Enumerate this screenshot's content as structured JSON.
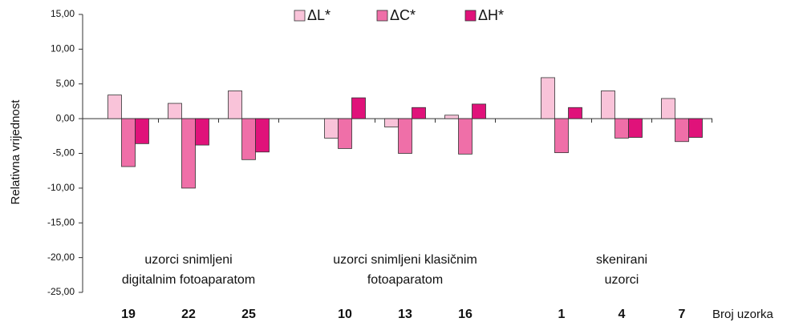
{
  "chart_data": {
    "type": "bar",
    "y_label": "Relativna vrijednost",
    "x_label": "Broj uzorka",
    "categories": [
      "19",
      "22",
      "25",
      "10",
      "13",
      "16",
      "1",
      "4",
      "7"
    ],
    "groups": [
      [
        "uzorci snimljeni",
        "digitalnim fotoaparatom"
      ],
      [
        "uzorci snimljeni klasičnim",
        "fotoaparatom"
      ],
      [
        "skenirani",
        "uzorci"
      ]
    ],
    "series": [
      {
        "name": "ΔL*",
        "color": "#f9c3d9",
        "values": [
          3.4,
          2.2,
          4.0,
          -2.8,
          -1.2,
          0.5,
          5.9,
          4.0,
          2.9
        ]
      },
      {
        "name": "ΔC*",
        "color": "#ef6fa8",
        "values": [
          -6.9,
          -10.0,
          -5.9,
          -4.3,
          -5.0,
          -5.1,
          -4.9,
          -2.8,
          -3.3
        ]
      },
      {
        "name": "ΔH*",
        "color": "#e0127a",
        "values": [
          -3.6,
          -3.8,
          -4.8,
          3.0,
          1.6,
          2.1,
          1.6,
          -2.7,
          -2.7
        ]
      }
    ],
    "ylim": [
      -25,
      15
    ],
    "yticks": [
      {
        "value": -25,
        "label": "-25,00"
      },
      {
        "value": -20,
        "label": "-20,00"
      },
      {
        "value": -15,
        "label": "-15,00"
      },
      {
        "value": -10,
        "label": "-10,00"
      },
      {
        "value": -5,
        "label": "-5,00"
      },
      {
        "value": 0,
        "label": "0,00"
      },
      {
        "value": 5,
        "label": "5,00"
      },
      {
        "value": 10,
        "label": "10,00"
      },
      {
        "value": 15,
        "label": "15,00"
      }
    ],
    "legend": "top"
  }
}
